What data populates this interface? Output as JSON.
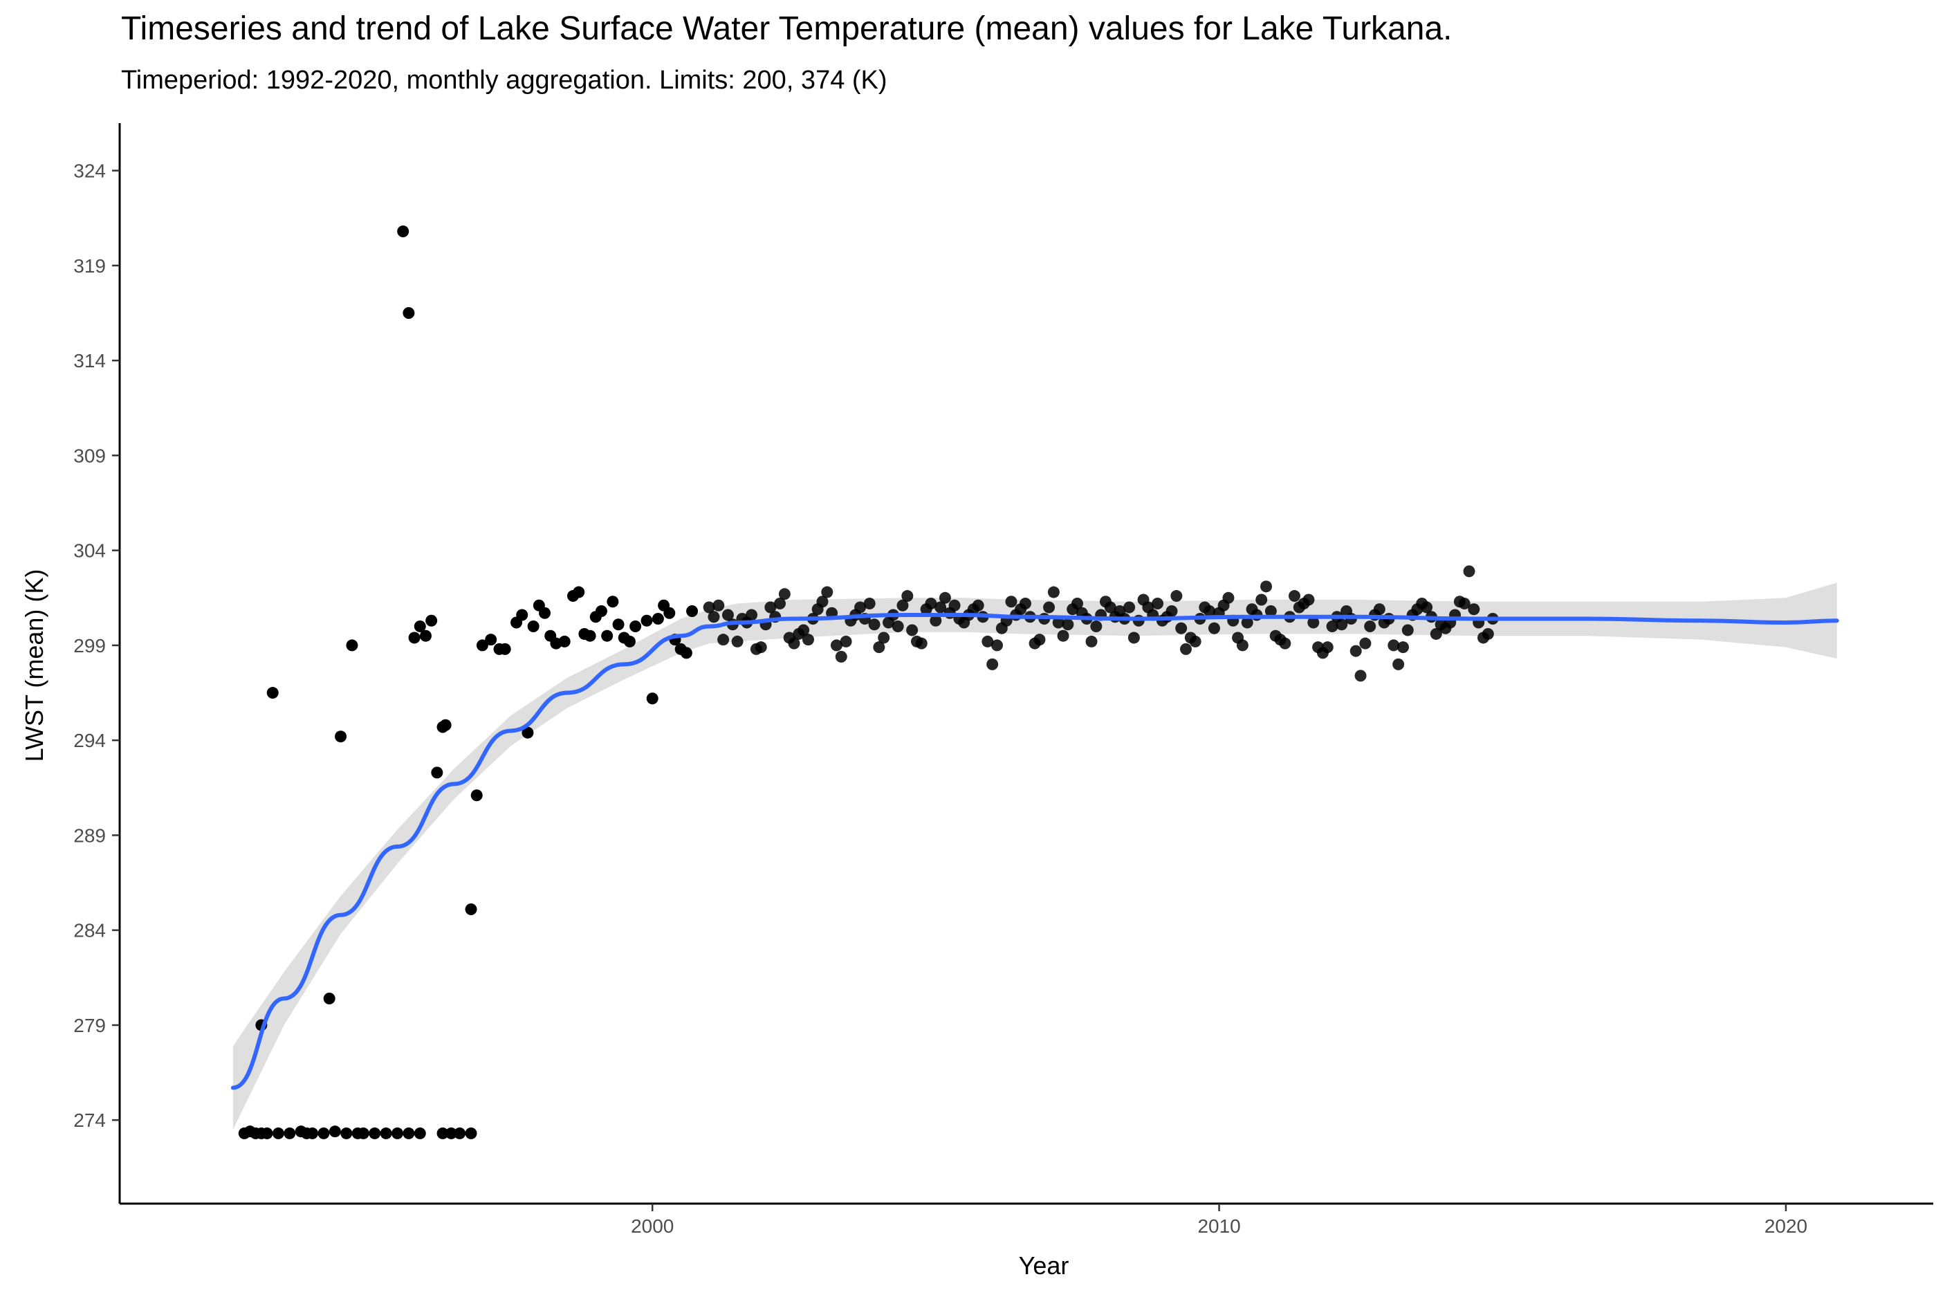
{
  "chart_data": {
    "type": "scatter",
    "title": "Timeseries and trend of Lake Surface Water Temperature (mean) values for Lake Turkana.",
    "subtitle": "Timeperiod: 1992-2020, monthly aggregation. Limits: 200, 374 (K)",
    "xlabel": "Year",
    "ylabel": "LWST (mean) (K)",
    "xlim": [
      1990.6,
      2022.6
    ],
    "ylim": [
      269.6,
      326.5
    ],
    "xticks": [
      2000,
      2010,
      2020
    ],
    "yticks": [
      274,
      279,
      284,
      289,
      294,
      299,
      304,
      309,
      314,
      319,
      324
    ],
    "grid": false,
    "legend": "none",
    "point_color": "#000000",
    "trend_color": "#3366FF",
    "band_color": "#d9d9d9",
    "series": [
      {
        "kind": "points",
        "x": [
          1992.8,
          1992.9,
          1993.0,
          1993.1,
          1993.2,
          1993.4,
          1993.6,
          1993.8,
          1993.9,
          1994.0,
          1994.2,
          1994.4,
          1994.6,
          1994.8,
          1994.9,
          1995.1,
          1995.3,
          1995.5,
          1995.7,
          1995.9,
          1996.3,
          1996.45,
          1996.6,
          1996.8,
          1993.1,
          1993.3,
          1994.3,
          1994.5,
          1994.7,
          1995.6,
          1995.7,
          1995.8,
          1995.9,
          1996.0,
          1996.1,
          1996.2,
          1996.3,
          1996.35,
          1996.8,
          1996.9,
          1997.0,
          1997.15,
          1997.3,
          1997.4,
          1997.6,
          1997.7,
          1997.8,
          1997.9,
          1998.0,
          1998.1,
          1998.2,
          1998.3,
          1998.45,
          1998.6,
          1998.7,
          1998.8,
          1998.9,
          1999.0,
          1999.1,
          1999.2,
          1999.3,
          1999.4,
          1999.5,
          1999.6,
          1999.7,
          1999.9,
          2000.0,
          2000.1,
          2000.2,
          2000.3,
          2000.4,
          2000.5,
          2000.6,
          2000.7
        ],
        "y": [
          273.3,
          273.4,
          273.3,
          273.3,
          273.3,
          273.3,
          273.3,
          273.4,
          273.3,
          273.3,
          273.3,
          273.4,
          273.3,
          273.3,
          273.3,
          273.3,
          273.3,
          273.3,
          273.3,
          273.3,
          273.3,
          273.3,
          273.3,
          273.3,
          279.0,
          296.5,
          280.4,
          294.2,
          299.0,
          320.8,
          316.5,
          299.4,
          300.0,
          299.5,
          300.3,
          292.3,
          294.7,
          294.8,
          285.1,
          291.1,
          299.0,
          299.3,
          298.8,
          298.8,
          300.2,
          300.6,
          294.4,
          300.0,
          301.1,
          300.7,
          299.5,
          299.1,
          299.2,
          301.6,
          301.8,
          299.6,
          299.5,
          300.5,
          300.8,
          299.5,
          301.3,
          300.1,
          299.4,
          299.2,
          300.0,
          300.3,
          296.2,
          300.4,
          301.1,
          300.7,
          299.3,
          298.8,
          298.6,
          300.8
        ]
      },
      {
        "kind": "points-dense",
        "x_start": 2001.0,
        "x_end": 2020.9,
        "step": 0.0833,
        "y": [
          301.0,
          300.5,
          301.1,
          299.3,
          300.6,
          300.1,
          299.2,
          300.4,
          300.2,
          300.6,
          298.8,
          298.9,
          300.1,
          301.0,
          300.5,
          301.2,
          301.7,
          299.4,
          299.1,
          299.6,
          299.8,
          299.3,
          300.4,
          300.9,
          301.3,
          301.8,
          300.7,
          299.0,
          298.4,
          299.2,
          300.3,
          300.6,
          301.0,
          300.4,
          301.2,
          300.1,
          298.9,
          299.4,
          300.2,
          300.6,
          300.0,
          301.1,
          301.6,
          299.8,
          299.2,
          299.1,
          300.9,
          301.2,
          300.3,
          301.0,
          301.5,
          300.7,
          301.1,
          300.4,
          300.2,
          300.6,
          300.9,
          301.1,
          300.5,
          299.2,
          298.0,
          299.0,
          299.9,
          300.3,
          301.3,
          300.6,
          300.9,
          301.2,
          300.5,
          299.1,
          299.3,
          300.4,
          301.0,
          301.8,
          300.2,
          299.5,
          300.1,
          300.9,
          301.2,
          300.7,
          300.4,
          299.2,
          300.0,
          300.6,
          301.3,
          301.0,
          300.5,
          300.8,
          300.4,
          301.0,
          299.4,
          300.3,
          301.4,
          301.0,
          300.6,
          301.2,
          300.3,
          300.5,
          300.8,
          301.6,
          299.9,
          298.8,
          299.4,
          299.2,
          300.4,
          301.0,
          300.8,
          299.9,
          300.7,
          301.1,
          301.5,
          300.3,
          299.4,
          299.0,
          300.2,
          300.9,
          300.6,
          301.4,
          302.1,
          300.8,
          299.5,
          299.3,
          299.1,
          300.5,
          301.6,
          301.0,
          301.2,
          301.4,
          300.2,
          298.9,
          298.6,
          298.9,
          300.0,
          300.5,
          300.1,
          300.8,
          300.4,
          298.7,
          297.4,
          299.1,
          300.0,
          300.6,
          300.9,
          300.2,
          300.4,
          299.0,
          298.0,
          298.9,
          299.8,
          300.6,
          300.9,
          301.2,
          301.0,
          300.5,
          299.6,
          300.1,
          299.9,
          300.2,
          300.6,
          301.3,
          301.2,
          302.9,
          300.9,
          300.2,
          299.4,
          299.6,
          300.4
        ]
      }
    ],
    "trend": {
      "x": [
        1992.6,
        1993.5,
        1994.5,
        1995.5,
        1996.5,
        1997.5,
        1998.5,
        1999.5,
        2000.5,
        2001.0,
        2001.5,
        2002.5,
        2004.5,
        2005.5,
        2006.5,
        2008.5,
        2010.5,
        2012.5,
        2014.5,
        2016.5,
        2018.5,
        2020.0,
        2020.9
      ],
      "y": [
        275.7,
        280.4,
        284.8,
        288.4,
        291.7,
        294.5,
        296.5,
        298.0,
        299.5,
        300.0,
        300.2,
        300.4,
        300.6,
        300.6,
        300.5,
        300.4,
        300.5,
        300.5,
        300.4,
        300.4,
        300.3,
        300.2,
        300.3
      ],
      "se": [
        2.2,
        1.4,
        1.0,
        0.9,
        0.8,
        0.8,
        0.8,
        0.8,
        0.9,
        0.9,
        1.0,
        1.0,
        0.9,
        0.9,
        0.9,
        0.9,
        0.9,
        0.9,
        0.9,
        0.9,
        1.0,
        1.3,
        2.0
      ]
    }
  }
}
